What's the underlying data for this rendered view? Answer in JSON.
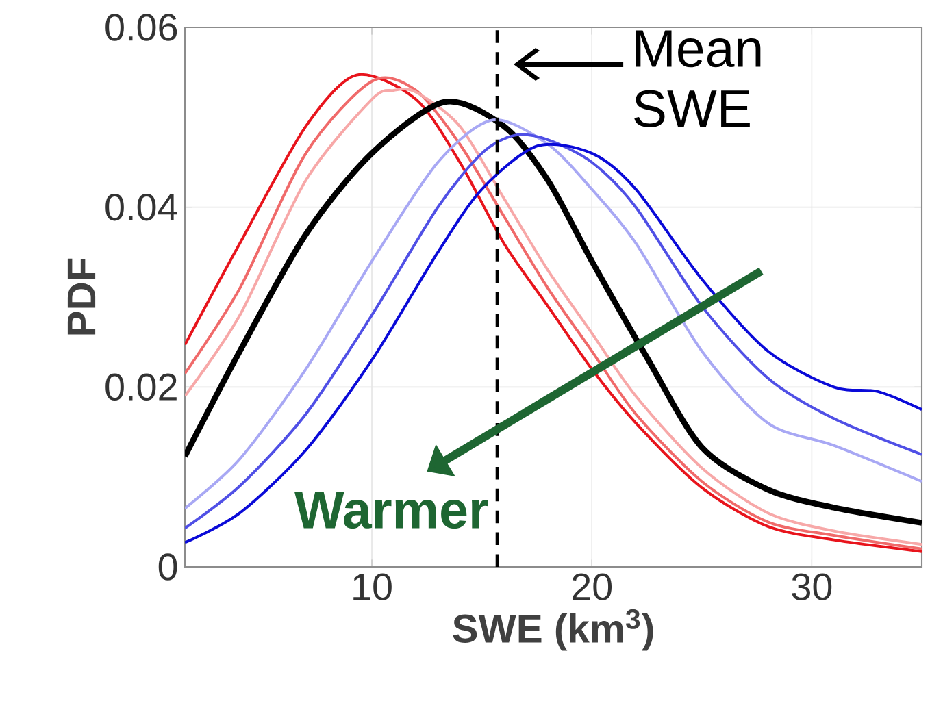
{
  "chart_data": {
    "type": "line",
    "xlabel": "SWE (km$^{3}$)",
    "ylabel": "PDF",
    "xlim": [
      1.5,
      35
    ],
    "ylim": [
      0,
      0.06
    ],
    "xticks": [
      10,
      20,
      30
    ],
    "yticks": [
      0,
      0.02,
      0.04,
      0.06
    ],
    "grid": true,
    "series": [
      {
        "color": "#e8141c",
        "x": [
          1.5,
          4,
          7,
          9.3,
          12,
          14,
          16,
          18,
          20,
          22,
          25,
          28,
          31,
          35
        ],
        "values": [
          0.0247,
          0.036,
          0.049,
          0.0547,
          0.052,
          0.045,
          0.036,
          0.029,
          0.022,
          0.016,
          0.0088,
          0.0045,
          0.003,
          0.0017
        ]
      },
      {
        "color": "#f06a6a",
        "x": [
          1.5,
          4,
          7,
          10,
          12,
          14,
          16,
          18,
          20,
          22,
          25,
          28,
          31,
          35
        ],
        "values": [
          0.0215,
          0.031,
          0.046,
          0.054,
          0.053,
          0.047,
          0.039,
          0.031,
          0.024,
          0.017,
          0.0095,
          0.005,
          0.0035,
          0.002
        ]
      },
      {
        "color": "#f7a8a8",
        "x": [
          1.5,
          4,
          7,
          10,
          11,
          12,
          14,
          16,
          18,
          20,
          22,
          25,
          28,
          31,
          35
        ],
        "values": [
          0.019,
          0.028,
          0.043,
          0.052,
          0.053,
          0.0528,
          0.049,
          0.041,
          0.033,
          0.026,
          0.019,
          0.011,
          0.006,
          0.004,
          0.0025
        ]
      },
      {
        "color": "#000000",
        "x": [
          1.5,
          4,
          7,
          10,
          13.3,
          16,
          18,
          20,
          22.5,
          25,
          28,
          31,
          35
        ],
        "values": [
          0.0123,
          0.024,
          0.037,
          0.046,
          0.0517,
          0.049,
          0.043,
          0.034,
          0.0233,
          0.0133,
          0.0086,
          0.0066,
          0.0049
        ]
      },
      {
        "color": "#a8a8f4",
        "x": [
          1.5,
          4,
          7,
          10,
          13,
          15.5,
          18,
          20,
          22,
          25,
          28,
          31,
          35
        ],
        "values": [
          0.0065,
          0.012,
          0.022,
          0.034,
          0.045,
          0.0497,
          0.047,
          0.042,
          0.036,
          0.024,
          0.016,
          0.0135,
          0.0095
        ]
      },
      {
        "color": "#5050e6",
        "x": [
          1.5,
          4,
          7,
          10,
          13,
          15,
          16.5,
          18,
          20,
          22,
          25,
          28,
          31,
          35
        ],
        "values": [
          0.0043,
          0.009,
          0.017,
          0.028,
          0.04,
          0.046,
          0.048,
          0.0475,
          0.045,
          0.04,
          0.029,
          0.021,
          0.0165,
          0.0125
        ]
      },
      {
        "color": "#0a0ad8",
        "x": [
          1.5,
          4,
          7,
          10,
          13,
          15,
          17.5,
          20,
          22,
          25,
          28,
          31,
          33,
          35
        ],
        "values": [
          0.0027,
          0.006,
          0.013,
          0.023,
          0.035,
          0.042,
          0.0468,
          0.046,
          0.042,
          0.032,
          0.024,
          0.02,
          0.0195,
          0.0175
        ]
      }
    ],
    "ref_lines": [
      {
        "axis": "x",
        "value": 15.7,
        "label": "Mean SWE",
        "color": "#000000",
        "line_style": "dashed"
      }
    ],
    "annotations": [
      "Warmer"
    ]
  }
}
